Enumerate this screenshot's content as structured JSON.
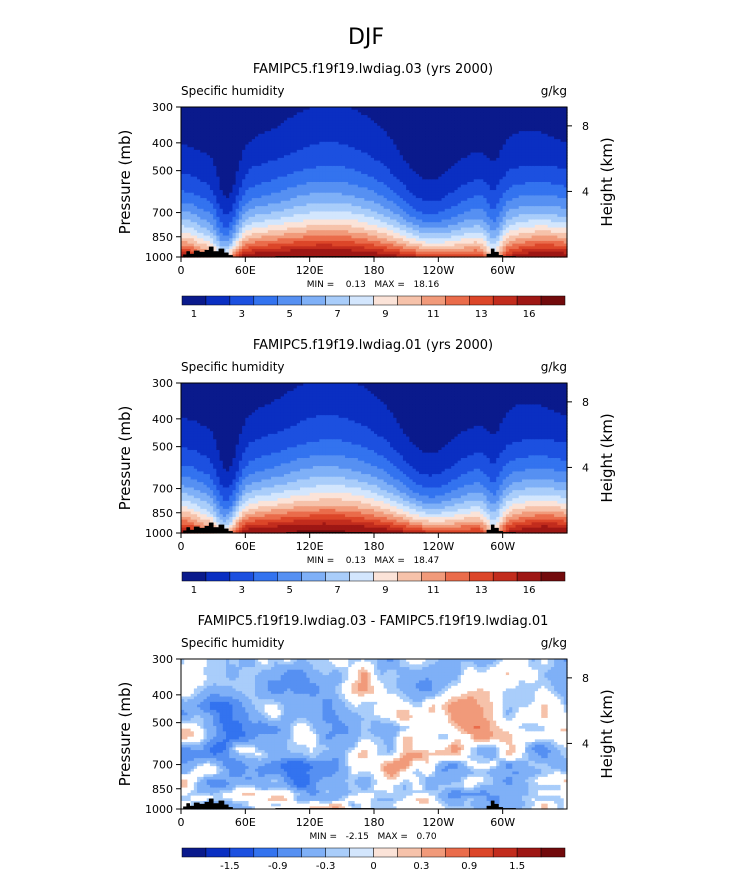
{
  "page_title": "DJF",
  "colors": {
    "cold_fill": "#ffffff",
    "land": "#000000"
  },
  "chart_data": [
    {
      "type": "heatmap",
      "title": "FAMIPC5.f19f19.lwdiag.03 (yrs 2000)",
      "left_label": "Specific humidity",
      "right_label": "g/kg",
      "ylabel": "Pressure (mb)",
      "ylabel_right": "Height (km)",
      "x_ticks": [
        "0",
        "60E",
        "120E",
        "180",
        "120W",
        "60W"
      ],
      "y_ticks": [
        "300",
        "400",
        "500",
        "700",
        "850",
        "1000"
      ],
      "height_ticks": [
        "8",
        "4"
      ],
      "stats_text": "MIN =    0.13   MAX =   18.16",
      "min": 0.13,
      "max": 18.16,
      "colorbar_labels": [
        "1",
        "3",
        "5",
        "7",
        "9",
        "11",
        "13",
        "16"
      ],
      "levels": [
        0,
        1,
        2,
        3,
        4,
        5,
        6,
        7,
        8,
        9,
        10,
        11,
        12,
        13,
        14,
        16
      ],
      "palette": [
        "#0a1a8c",
        "#0a2fc2",
        "#1c50e0",
        "#3373ef",
        "#5690f2",
        "#7fb0f7",
        "#a9cdfa",
        "#d3e6fd",
        "#fbe3d8",
        "#f6c2aa",
        "#f19a7a",
        "#ea6c4b",
        "#dc4629",
        "#c22c1d",
        "#9e1714",
        "#720a0c"
      ]
    },
    {
      "type": "heatmap",
      "title": "FAMIPC5.f19f19.lwdiag.01 (yrs 2000)",
      "left_label": "Specific humidity",
      "right_label": "g/kg",
      "ylabel": "Pressure (mb)",
      "ylabel_right": "Height (km)",
      "x_ticks": [
        "0",
        "60E",
        "120E",
        "180",
        "120W",
        "60W"
      ],
      "y_ticks": [
        "300",
        "400",
        "500",
        "700",
        "850",
        "1000"
      ],
      "height_ticks": [
        "8",
        "4"
      ],
      "stats_text": "MIN =    0.13   MAX =   18.47",
      "min": 0.13,
      "max": 18.47,
      "colorbar_labels": [
        "1",
        "3",
        "5",
        "7",
        "9",
        "11",
        "13",
        "16"
      ],
      "levels": [
        0,
        1,
        2,
        3,
        4,
        5,
        6,
        7,
        8,
        9,
        10,
        11,
        12,
        13,
        14,
        16
      ],
      "palette": [
        "#0a1a8c",
        "#0a2fc2",
        "#1c50e0",
        "#3373ef",
        "#5690f2",
        "#7fb0f7",
        "#a9cdfa",
        "#d3e6fd",
        "#fbe3d8",
        "#f6c2aa",
        "#f19a7a",
        "#ea6c4b",
        "#dc4629",
        "#c22c1d",
        "#9e1714",
        "#720a0c"
      ]
    },
    {
      "type": "heatmap",
      "title": "FAMIPC5.f19f19.lwdiag.03 - FAMIPC5.f19f19.lwdiag.01",
      "left_label": "Specific humidity",
      "right_label": "g/kg",
      "ylabel": "Pressure (mb)",
      "ylabel_right": "Height (km)",
      "x_ticks": [
        "0",
        "60E",
        "120E",
        "180",
        "120W",
        "60W"
      ],
      "y_ticks": [
        "300",
        "400",
        "500",
        "700",
        "850",
        "1000"
      ],
      "height_ticks": [
        "8",
        "4"
      ],
      "stats_text": "MIN =   -2.15   MAX =   0.70",
      "min": -2.15,
      "max": 0.7,
      "colorbar_labels": [
        "-1.5",
        "-0.9",
        "-0.3",
        "0",
        "0.3",
        "0.9",
        "1.5"
      ],
      "levels": [
        -2.1,
        -1.8,
        -1.5,
        -1.2,
        -0.9,
        -0.6,
        -0.3,
        -0.15,
        0,
        0.15,
        0.3,
        0.6,
        0.9,
        1.2,
        1.5,
        1.8
      ],
      "palette": [
        "#0a1a8c",
        "#0a2fc2",
        "#1c50e0",
        "#3373ef",
        "#5690f2",
        "#7fb0f7",
        "#a9cdfa",
        "#d3e6fd",
        "#fbe3d8",
        "#f6c2aa",
        "#f19a7a",
        "#ea6c4b",
        "#dc4629",
        "#c22c1d",
        "#9e1714",
        "#720a0c"
      ]
    }
  ]
}
